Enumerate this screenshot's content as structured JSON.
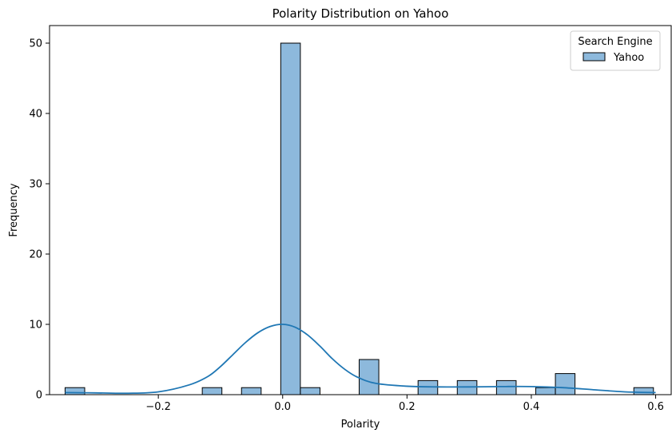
{
  "chart_data": {
    "type": "histogram",
    "title": "Polarity Distribution on Yahoo",
    "xlabel": "Polarity",
    "ylabel": "Frequency",
    "xlim": [
      -0.375,
      0.625
    ],
    "ylim": [
      0,
      52.5
    ],
    "xticks": [
      -0.2,
      0.0,
      0.2,
      0.4,
      0.6
    ],
    "xtick_labels": [
      "−0.2",
      "0.0",
      "0.2",
      "0.4",
      "0.6"
    ],
    "yticks": [
      0,
      10,
      20,
      30,
      40,
      50
    ],
    "ytick_labels": [
      "0",
      "10",
      "20",
      "30",
      "40",
      "50"
    ],
    "bin_width": 0.03155,
    "bins": [
      {
        "x0": -0.35,
        "count": 1
      },
      {
        "x0": -0.1293,
        "count": 1
      },
      {
        "x0": -0.0662,
        "count": 1
      },
      {
        "x0": -0.0031,
        "count": 50
      },
      {
        "x0": 0.0285,
        "count": 1
      },
      {
        "x0": 0.1231,
        "count": 5
      },
      {
        "x0": 0.2178,
        "count": 2
      },
      {
        "x0": 0.2809,
        "count": 2
      },
      {
        "x0": 0.344,
        "count": 2
      },
      {
        "x0": 0.4071,
        "count": 1
      },
      {
        "x0": 0.4387,
        "count": 3
      },
      {
        "x0": 0.5649,
        "count": 1
      }
    ],
    "kde": {
      "x": [
        -0.35,
        -0.3,
        -0.25,
        -0.2,
        -0.15,
        -0.12,
        -0.1,
        -0.08,
        -0.06,
        -0.04,
        -0.02,
        0.0,
        0.02,
        0.04,
        0.06,
        0.08,
        0.1,
        0.12,
        0.15,
        0.2,
        0.25,
        0.3,
        0.35,
        0.4,
        0.45,
        0.5,
        0.55,
        0.6
      ],
      "y": [
        0.3,
        0.25,
        0.2,
        0.4,
        1.4,
        2.6,
        4.0,
        5.7,
        7.4,
        8.8,
        9.7,
        10.0,
        9.6,
        8.5,
        6.9,
        5.1,
        3.6,
        2.5,
        1.6,
        1.2,
        1.1,
        1.1,
        1.15,
        1.15,
        1.0,
        0.7,
        0.4,
        0.3
      ]
    },
    "bar_color": "#8db9dc",
    "bar_edge_color": "#000000",
    "line_color": "#1f77b4",
    "grid": false,
    "legend": {
      "title": "Search Engine",
      "entries": [
        "Yahoo"
      ],
      "placement": "top-right"
    }
  }
}
